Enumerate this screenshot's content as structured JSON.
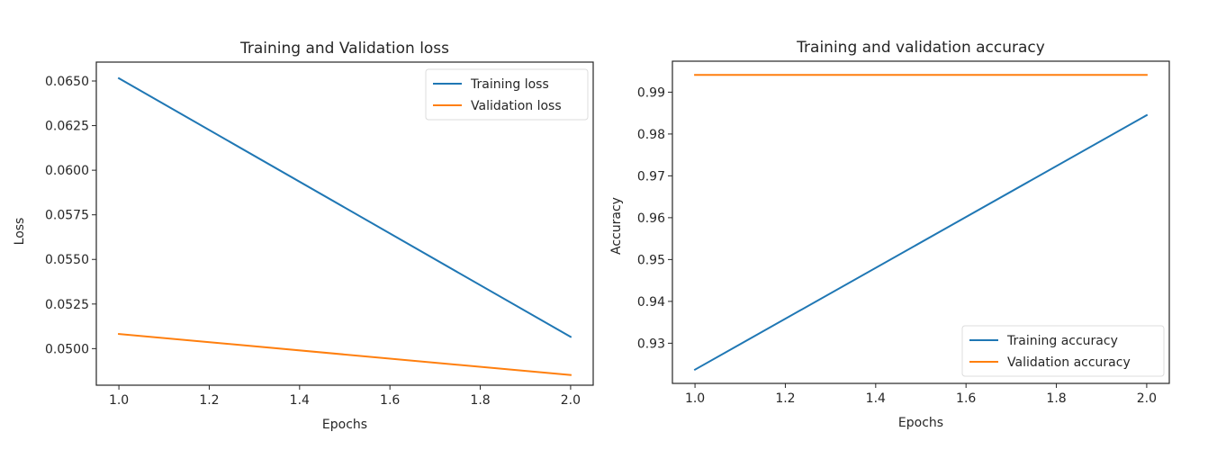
{
  "chart_data": [
    {
      "type": "line",
      "title": "Training and Validation loss",
      "xlabel": "Epochs",
      "ylabel": "Loss",
      "xlim": [
        0.95,
        2.05
      ],
      "ylim": [
        0.04795,
        0.06606
      ],
      "xticks": [
        1.0,
        1.2,
        1.4,
        1.6,
        1.8,
        2.0
      ],
      "xtick_labels": [
        "1.0",
        "1.2",
        "1.4",
        "1.6",
        "1.8",
        "2.0"
      ],
      "yticks": [
        0.05,
        0.0525,
        0.055,
        0.0575,
        0.06,
        0.0625,
        0.065
      ],
      "ytick_labels": [
        "0.0500",
        "0.0525",
        "0.0550",
        "0.0575",
        "0.0600",
        "0.0625",
        "0.0650"
      ],
      "grid": false,
      "legend_position": "top-right",
      "x": [
        1.0,
        2.0
      ],
      "series": [
        {
          "name": "Training loss",
          "color": "#1f77b4",
          "values": [
            0.06515,
            0.05066
          ]
        },
        {
          "name": "Validation loss",
          "color": "#ff7f0e",
          "values": [
            0.05082,
            0.04852
          ]
        }
      ]
    },
    {
      "type": "line",
      "title": "Training and validation accuracy",
      "xlabel": "Epochs",
      "ylabel": "Accuracy",
      "xlim": [
        0.95,
        2.05
      ],
      "ylim": [
        0.9204,
        0.9974
      ],
      "xticks": [
        1.0,
        1.2,
        1.4,
        1.6,
        1.8,
        2.0
      ],
      "xtick_labels": [
        "1.0",
        "1.2",
        "1.4",
        "1.6",
        "1.8",
        "2.0"
      ],
      "yticks": [
        0.93,
        0.94,
        0.95,
        0.96,
        0.97,
        0.98,
        0.99
      ],
      "ytick_labels": [
        "0.93",
        "0.94",
        "0.95",
        "0.96",
        "0.97",
        "0.98",
        "0.99"
      ],
      "grid": false,
      "legend_position": "bottom-right",
      "x": [
        1.0,
        2.0
      ],
      "series": [
        {
          "name": "Training accuracy",
          "color": "#1f77b4",
          "values": [
            0.9237,
            0.9845
          ]
        },
        {
          "name": "Validation accuracy",
          "color": "#ff7f0e",
          "values": [
            0.9941,
            0.9941
          ]
        }
      ]
    }
  ]
}
